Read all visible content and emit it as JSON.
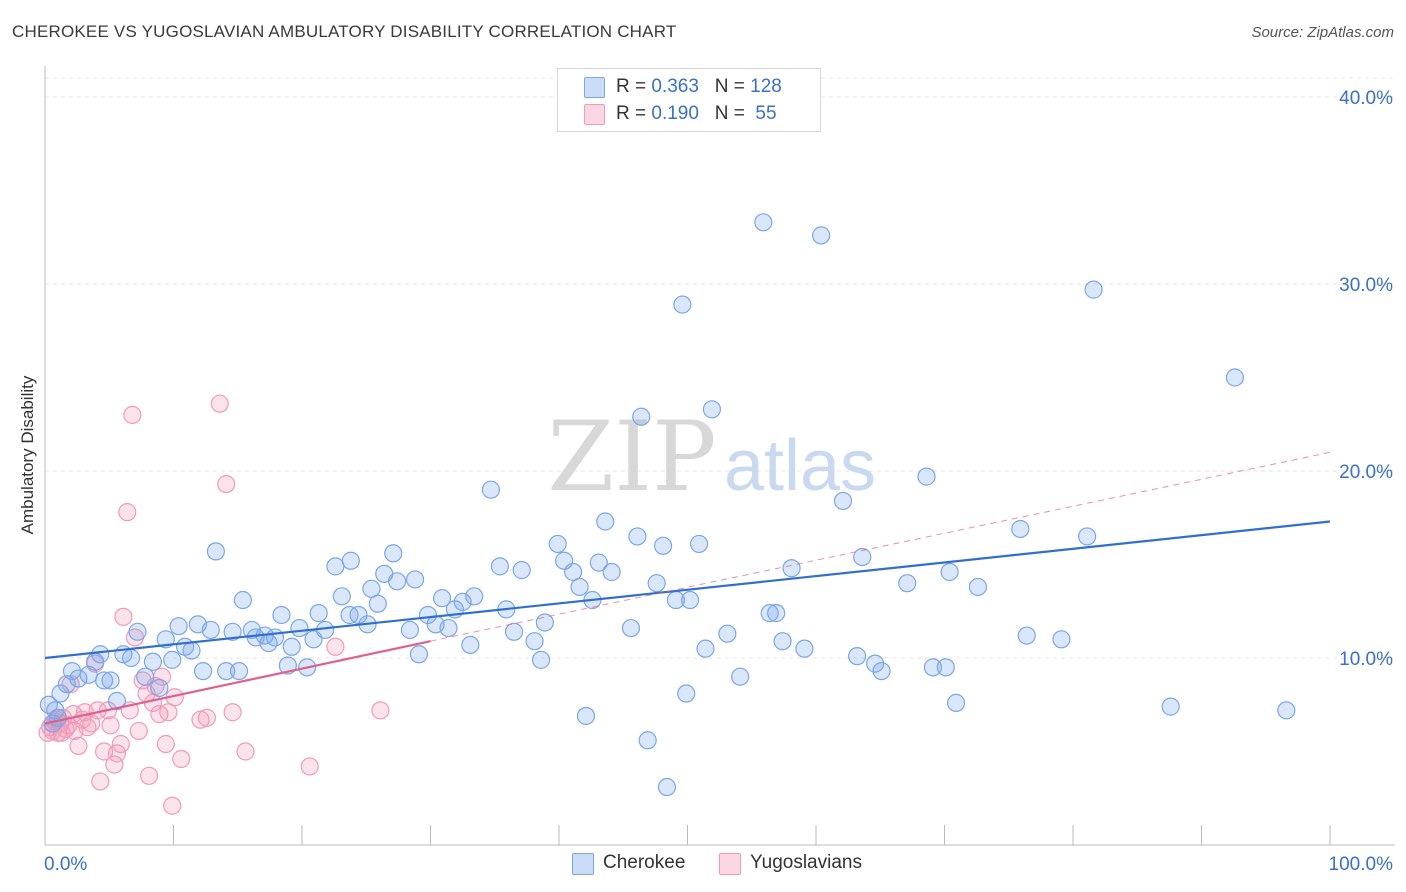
{
  "title": "CHEROKEE VS YUGOSLAVIAN AMBULATORY DISABILITY CORRELATION CHART",
  "source": "Source: ZipAtlas.com",
  "watermark": {
    "zip": "ZIP",
    "atlas": "atlas"
  },
  "legend": {
    "rows": [
      {
        "r_label": "R = ",
        "r_value": "0.363",
        "n_label": "N = ",
        "n_value": "128",
        "color": "#7aa7e8"
      },
      {
        "r_label": "R = ",
        "r_value": "0.190",
        "n_label": "N = ",
        "n_value": " 55",
        "color": "#f29ab8"
      }
    ]
  },
  "bottom_legend": [
    {
      "label": "Cherokee",
      "color": "#7aa7e8"
    },
    {
      "label": "Yugoslavians",
      "color": "#f29ab8"
    }
  ],
  "chart_data": {
    "type": "scatter",
    "title": "CHEROKEE VS YUGOSLAVIAN AMBULATORY DISABILITY CORRELATION CHART",
    "xlabel": "",
    "ylabel": "Ambulatory Disability",
    "xlim": [
      0,
      100
    ],
    "ylim": [
      0,
      40
    ],
    "x_tick_labels": [
      "0.0%",
      "100.0%"
    ],
    "y_ticks": [
      10,
      20,
      30,
      40
    ],
    "y_tick_labels": [
      "10.0%",
      "20.0%",
      "30.0%",
      "40.0%"
    ],
    "grid": true,
    "legend_position": "top-center",
    "series": [
      {
        "name": "Cherokee",
        "color": "#7aa7e8",
        "line_color": "#2f6fcf",
        "trend": {
          "x0": 0,
          "y0": 10.0,
          "x1": 100,
          "y1": 17.3,
          "dash_to_y": null
        },
        "points": [
          [
            0.3,
            7.5
          ],
          [
            0.8,
            7.2
          ],
          [
            1.2,
            8.1
          ],
          [
            1.7,
            8.6
          ],
          [
            2.1,
            9.3
          ],
          [
            2.6,
            8.9
          ],
          [
            3.4,
            9.1
          ],
          [
            3.9,
            9.8
          ],
          [
            4.3,
            10.2
          ],
          [
            4.6,
            8.8
          ],
          [
            5.1,
            8.8
          ],
          [
            5.6,
            7.7
          ],
          [
            6.1,
            10.2
          ],
          [
            6.7,
            10.0
          ],
          [
            7.2,
            11.4
          ],
          [
            7.8,
            9.0
          ],
          [
            8.4,
            9.8
          ],
          [
            8.9,
            8.4
          ],
          [
            9.4,
            11.0
          ],
          [
            9.9,
            9.9
          ],
          [
            10.4,
            11.7
          ],
          [
            10.9,
            10.6
          ],
          [
            11.4,
            10.4
          ],
          [
            11.9,
            11.8
          ],
          [
            12.3,
            9.3
          ],
          [
            12.9,
            11.5
          ],
          [
            13.3,
            15.7
          ],
          [
            14.1,
            9.3
          ],
          [
            14.6,
            11.4
          ],
          [
            15.1,
            9.3
          ],
          [
            15.4,
            13.1
          ],
          [
            16.1,
            11.5
          ],
          [
            16.4,
            11.1
          ],
          [
            17.1,
            11.2
          ],
          [
            17.4,
            10.8
          ],
          [
            17.9,
            11.1
          ],
          [
            18.4,
            12.3
          ],
          [
            18.9,
            9.6
          ],
          [
            19.2,
            10.6
          ],
          [
            19.8,
            11.6
          ],
          [
            20.4,
            9.5
          ],
          [
            20.9,
            11.0
          ],
          [
            21.3,
            12.4
          ],
          [
            21.8,
            11.5
          ],
          [
            22.6,
            14.9
          ],
          [
            23.1,
            13.3
          ],
          [
            23.7,
            12.3
          ],
          [
            23.8,
            15.2
          ],
          [
            24.4,
            12.3
          ],
          [
            25.1,
            11.8
          ],
          [
            25.4,
            13.7
          ],
          [
            25.9,
            12.9
          ],
          [
            26.4,
            14.5
          ],
          [
            27.1,
            15.6
          ],
          [
            27.4,
            14.1
          ],
          [
            28.4,
            11.5
          ],
          [
            28.8,
            14.2
          ],
          [
            29.1,
            10.2
          ],
          [
            29.8,
            12.3
          ],
          [
            30.4,
            11.8
          ],
          [
            30.9,
            13.2
          ],
          [
            31.4,
            11.6
          ],
          [
            31.9,
            12.6
          ],
          [
            32.5,
            13.0
          ],
          [
            33.1,
            10.7
          ],
          [
            33.4,
            13.3
          ],
          [
            34.7,
            19.0
          ],
          [
            35.4,
            14.9
          ],
          [
            35.9,
            12.6
          ],
          [
            36.5,
            11.4
          ],
          [
            37.1,
            14.7
          ],
          [
            38.1,
            10.9
          ],
          [
            38.6,
            9.9
          ],
          [
            38.9,
            11.9
          ],
          [
            39.9,
            16.1
          ],
          [
            40.4,
            15.2
          ],
          [
            41.1,
            14.6
          ],
          [
            41.6,
            13.8
          ],
          [
            42.1,
            6.9
          ],
          [
            42.6,
            13.1
          ],
          [
            43.1,
            15.1
          ],
          [
            43.6,
            17.3
          ],
          [
            44.1,
            14.6
          ],
          [
            45.6,
            11.6
          ],
          [
            46.1,
            16.5
          ],
          [
            46.4,
            22.9
          ],
          [
            46.9,
            5.6
          ],
          [
            47.6,
            14.0
          ],
          [
            48.1,
            16.0
          ],
          [
            48.4,
            3.1
          ],
          [
            49.1,
            13.1
          ],
          [
            49.6,
            28.9
          ],
          [
            49.9,
            8.1
          ],
          [
            50.2,
            13.1
          ],
          [
            50.9,
            16.1
          ],
          [
            51.4,
            10.5
          ],
          [
            51.9,
            23.3
          ],
          [
            53.1,
            11.3
          ],
          [
            54.1,
            9.0
          ],
          [
            55.9,
            33.3
          ],
          [
            56.4,
            12.4
          ],
          [
            56.9,
            12.4
          ],
          [
            57.4,
            10.9
          ],
          [
            58.1,
            14.8
          ],
          [
            59.1,
            10.5
          ],
          [
            60.4,
            32.6
          ],
          [
            62.1,
            18.4
          ],
          [
            63.2,
            10.1
          ],
          [
            63.6,
            15.4
          ],
          [
            64.6,
            9.7
          ],
          [
            65.1,
            9.3
          ],
          [
            67.1,
            14.0
          ],
          [
            68.6,
            19.7
          ],
          [
            69.1,
            9.5
          ],
          [
            70.1,
            9.5
          ],
          [
            70.4,
            14.6
          ],
          [
            70.9,
            7.6
          ],
          [
            72.6,
            13.8
          ],
          [
            75.9,
            16.9
          ],
          [
            76.4,
            11.2
          ],
          [
            79.1,
            11.0
          ],
          [
            81.1,
            16.5
          ],
          [
            81.6,
            29.7
          ],
          [
            87.6,
            7.4
          ],
          [
            92.6,
            25.0
          ],
          [
            96.6,
            7.2
          ],
          [
            0.6,
            6.5
          ],
          [
            1.0,
            6.8
          ]
        ]
      },
      {
        "name": "Yugoslavians",
        "color": "#f29ab8",
        "line_color": "#e0608c",
        "trend": {
          "x0": 0,
          "y0": 6.5,
          "x1": 30,
          "y1": 10.9,
          "dash_to_x": 100,
          "dash_to_y": 21.0
        },
        "points": [
          [
            0.2,
            6.0
          ],
          [
            0.4,
            6.3
          ],
          [
            0.6,
            6.1
          ],
          [
            0.8,
            6.6
          ],
          [
            1.0,
            6.0
          ],
          [
            1.2,
            6.5
          ],
          [
            1.4,
            6.8
          ],
          [
            1.6,
            6.2
          ],
          [
            1.8,
            6.4
          ],
          [
            2.0,
            8.6
          ],
          [
            2.3,
            6.1
          ],
          [
            2.6,
            5.3
          ],
          [
            2.9,
            6.7
          ],
          [
            3.1,
            7.1
          ],
          [
            3.3,
            6.3
          ],
          [
            3.6,
            6.5
          ],
          [
            3.9,
            9.7
          ],
          [
            4.1,
            7.2
          ],
          [
            4.3,
            3.4
          ],
          [
            4.6,
            5.0
          ],
          [
            4.9,
            7.2
          ],
          [
            5.1,
            6.4
          ],
          [
            5.4,
            4.3
          ],
          [
            5.6,
            4.9
          ],
          [
            5.9,
            5.4
          ],
          [
            6.1,
            12.2
          ],
          [
            6.4,
            17.8
          ],
          [
            6.6,
            7.2
          ],
          [
            6.8,
            23.0
          ],
          [
            7.0,
            11.1
          ],
          [
            7.3,
            6.1
          ],
          [
            7.6,
            8.8
          ],
          [
            7.9,
            8.1
          ],
          [
            8.1,
            3.7
          ],
          [
            8.4,
            7.6
          ],
          [
            8.6,
            8.5
          ],
          [
            8.9,
            7.0
          ],
          [
            9.1,
            9.0
          ],
          [
            9.4,
            5.4
          ],
          [
            9.6,
            7.1
          ],
          [
            9.9,
            2.1
          ],
          [
            10.1,
            7.9
          ],
          [
            10.6,
            4.6
          ],
          [
            12.1,
            6.7
          ],
          [
            12.6,
            6.8
          ],
          [
            13.6,
            23.6
          ],
          [
            14.1,
            19.3
          ],
          [
            14.6,
            7.1
          ],
          [
            15.6,
            5.0
          ],
          [
            20.6,
            4.2
          ],
          [
            22.6,
            10.6
          ],
          [
            26.1,
            7.2
          ],
          [
            0.9,
            6.7
          ],
          [
            1.3,
            6.0
          ],
          [
            2.2,
            7.0
          ]
        ]
      }
    ]
  }
}
